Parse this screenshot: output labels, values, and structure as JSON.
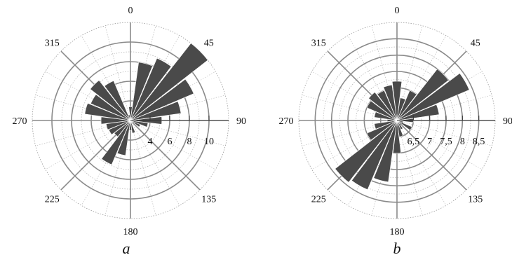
{
  "chart_data": [
    {
      "type": "polar_bar",
      "caption": "a",
      "angle_labels": [
        "0",
        "45",
        "90",
        "135",
        "180",
        "225",
        "270",
        "315"
      ],
      "radial_ticks": [
        "4",
        "6",
        "8",
        "10"
      ],
      "r_major": [
        4,
        6,
        8,
        10
      ],
      "r_minor": [
        2,
        12
      ],
      "rlim": [
        2,
        12
      ],
      "sector_width_deg": 15,
      "directions_deg": [
        0,
        15,
        30,
        45,
        60,
        75,
        90,
        105,
        120,
        135,
        150,
        165,
        180,
        195,
        210,
        225,
        240,
        255,
        270,
        285,
        300,
        315,
        330,
        345
      ],
      "values": [
        3.4,
        8.0,
        8.9,
        12.0,
        9.0,
        7.2,
        5.2,
        3.8,
        3.1,
        2.0,
        2.3,
        3.3,
        3.0,
        5.6,
        6.9,
        4.1,
        4.4,
        4.5,
        5.0,
        6.7,
        6.4,
        7.2,
        6.4,
        2.6
      ],
      "color": "#4a4a4a"
    },
    {
      "type": "polar_bar",
      "caption": "b",
      "angle_labels": [
        "0",
        "45",
        "90",
        "135",
        "180",
        "225",
        "270",
        "315"
      ],
      "radial_ticks": [
        "6,5",
        "7",
        "7,5",
        "8",
        "8,5"
      ],
      "r_major": [
        6.5,
        7,
        7.5,
        8,
        8.5
      ],
      "r_minor": [
        9
      ],
      "rlim": [
        6,
        9
      ],
      "sector_width_deg": 15,
      "directions_deg": [
        0,
        15,
        30,
        45,
        60,
        75,
        90,
        105,
        120,
        135,
        150,
        165,
        180,
        195,
        210,
        225,
        240,
        255,
        270,
        285,
        300,
        315,
        330,
        345
      ],
      "values": [
        7.2,
        6.7,
        7.0,
        8.0,
        8.4,
        7.3,
        6.5,
        6.2,
        6.5,
        6.2,
        6.3,
        6.5,
        7.0,
        7.9,
        8.3,
        8.4,
        7.0,
        6.7,
        6.3,
        6.7,
        7.0,
        7.1,
        7.0,
        7.1
      ],
      "color": "#4a4a4a"
    }
  ]
}
